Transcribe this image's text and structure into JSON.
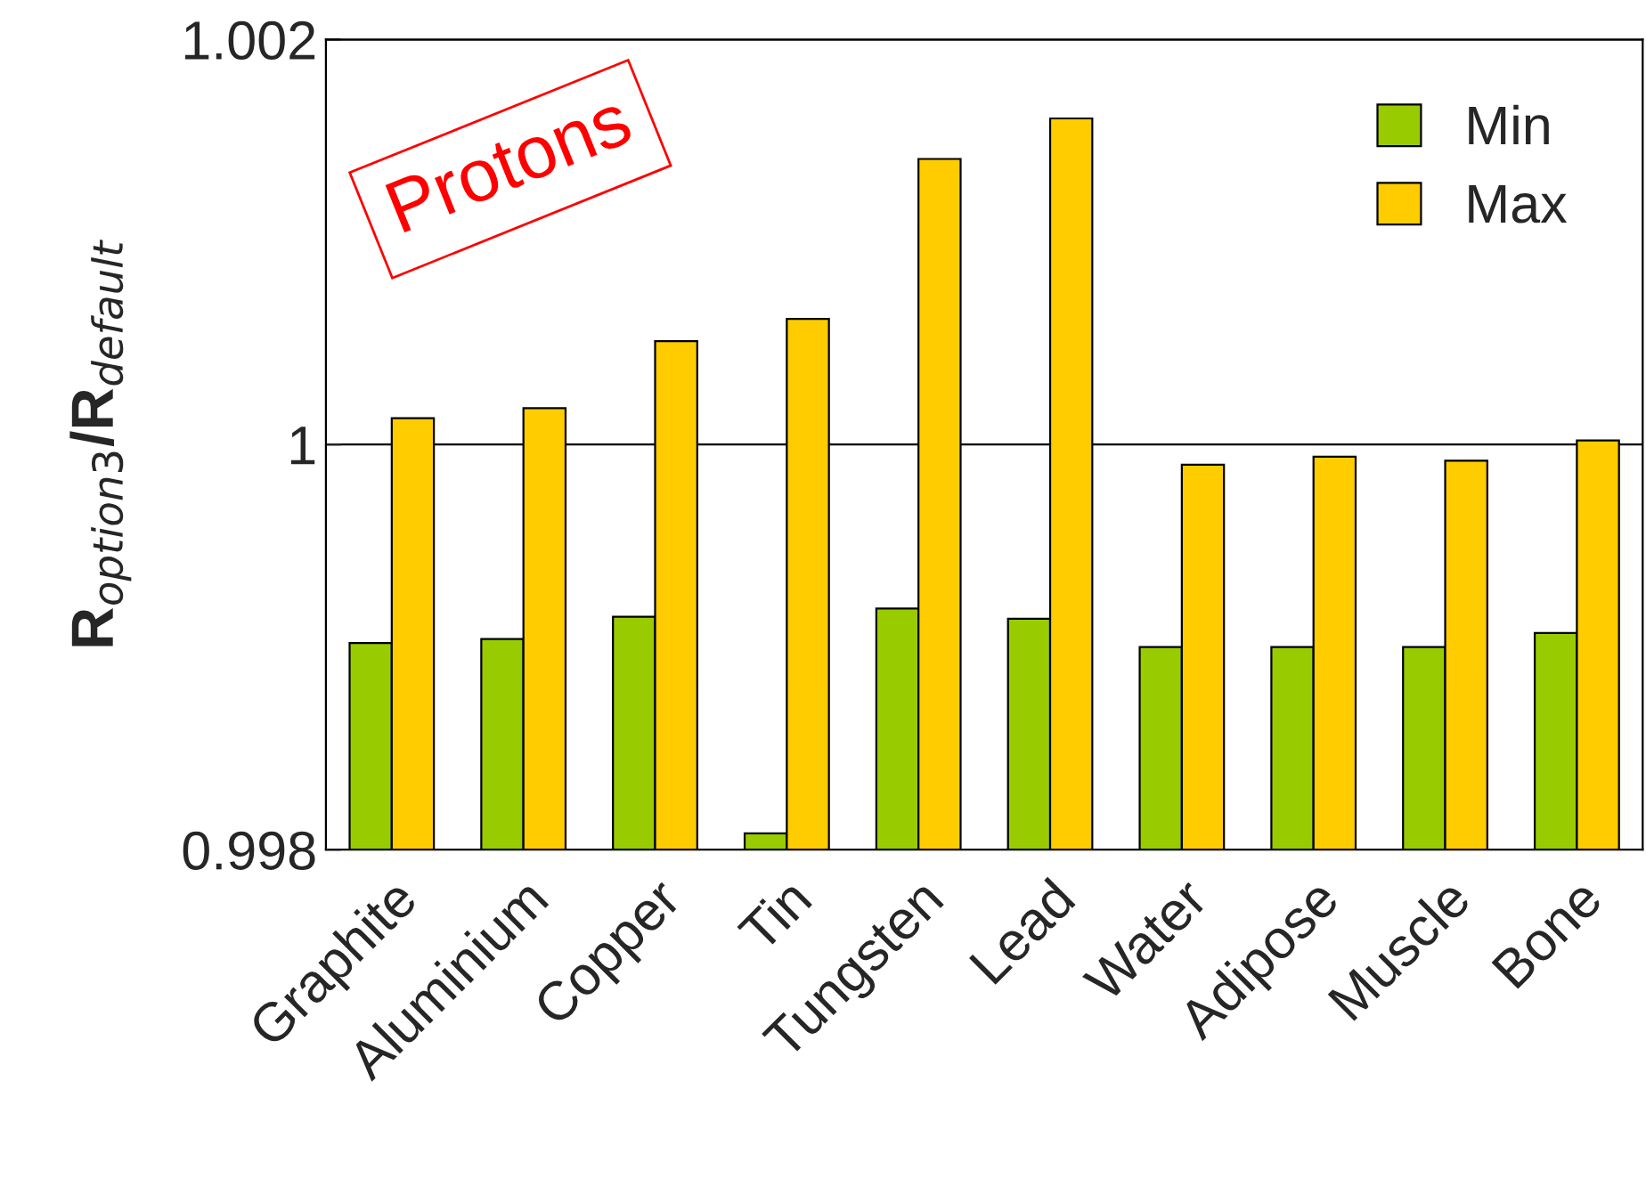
{
  "chart_data": {
    "type": "bar",
    "categories": [
      "Graphite",
      "Aluminium",
      "Copper",
      "Tin",
      "Tungsten",
      "Lead",
      "Water",
      "Adipose",
      "Muscle",
      "Bone"
    ],
    "series": [
      {
        "name": "Min",
        "color": "#99cc00",
        "values": [
          0.99902,
          0.99904,
          0.99915,
          0.99808,
          0.99919,
          0.99914,
          0.999,
          0.999,
          0.999,
          0.99907
        ]
      },
      {
        "name": "Max",
        "color": "#ffcc00",
        "values": [
          1.00013,
          1.00018,
          1.00051,
          1.00062,
          1.00141,
          1.00161,
          0.9999,
          0.99994,
          0.99992,
          1.00002
        ]
      }
    ],
    "ylabel": "R$_{option3}$/R$_{default}$",
    "ylim": [
      0.998,
      1.002
    ],
    "yticks": [
      0.998,
      1,
      1.002
    ],
    "grid": "y",
    "legend": "top right",
    "annotations": [
      "Protons"
    ]
  }
}
